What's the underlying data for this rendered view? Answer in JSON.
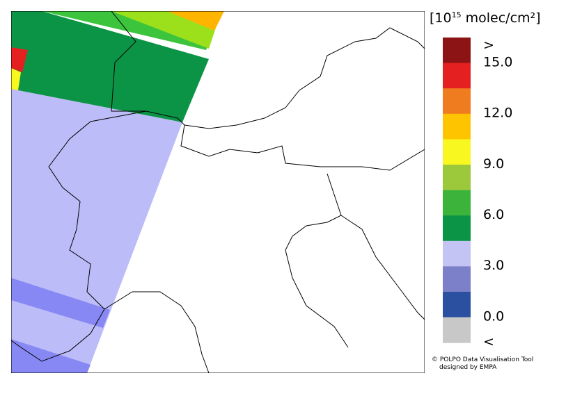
{
  "legend": {
    "title_base": "[10",
    "title_exponent": "15",
    "title_unit": " molec/cm²]",
    "labels": [
      ">",
      "15.0",
      "12.0",
      "9.0",
      "6.0",
      "3.0",
      "0.0",
      "<"
    ],
    "colors": [
      "#8c1414",
      "#e42020",
      "#f07c20",
      "#ffc400",
      "#f8f820",
      "#9cc83c",
      "#3cb43c",
      "#0c9446",
      "#c4c4f4",
      "#7c80c8",
      "#2c50a0",
      "#c8c8c8"
    ]
  },
  "credit": {
    "line1": "© POLPO Data Visualisation Tool",
    "line2": "designed by EMPA"
  }
}
